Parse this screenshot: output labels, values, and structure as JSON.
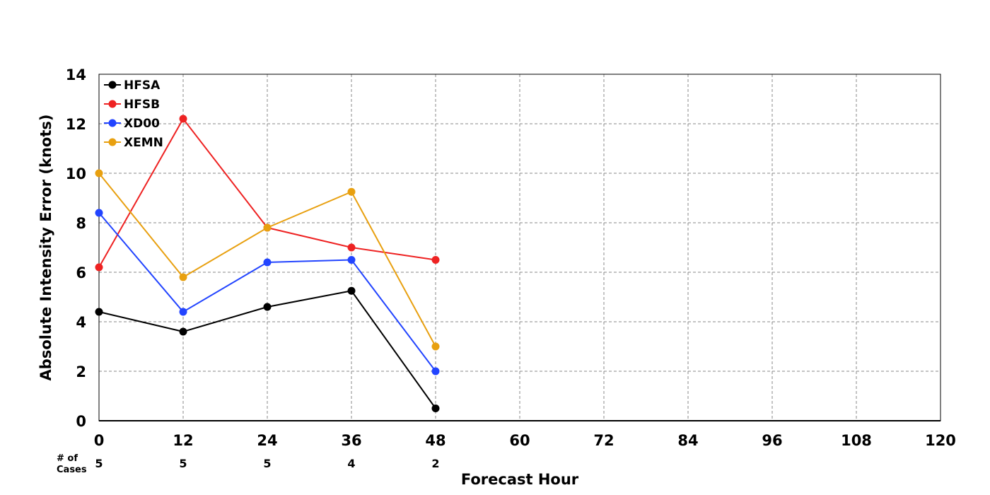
{
  "chart_data": {
    "type": "line",
    "xlabel": "Forecast Hour",
    "ylabel": "Absolute Intensity Error (knots)",
    "xlim": [
      0,
      120
    ],
    "ylim": [
      0,
      14
    ],
    "xticks": [
      0,
      12,
      24,
      36,
      48,
      60,
      72,
      84,
      96,
      108,
      120
    ],
    "yticks": [
      0,
      2,
      4,
      6,
      8,
      10,
      12,
      14
    ],
    "grid": true,
    "legend_position": "top-left",
    "x": [
      0,
      12,
      24,
      36,
      48
    ],
    "series": [
      {
        "name": "HFSA",
        "color": "#000000",
        "values": [
          4.4,
          3.6,
          4.6,
          5.25,
          0.5
        ]
      },
      {
        "name": "HFSB",
        "color": "#ee2222",
        "values": [
          6.2,
          12.2,
          7.8,
          7.0,
          6.5
        ]
      },
      {
        "name": "XD00",
        "color": "#2244ff",
        "values": [
          8.4,
          4.4,
          6.4,
          6.5,
          2.0
        ]
      },
      {
        "name": "XEMN",
        "color": "#e8a010",
        "values": [
          10.0,
          5.8,
          7.8,
          9.25,
          3.0
        ]
      }
    ],
    "cases": {
      "label_line1": "# of",
      "label_line2": "Cases",
      "x": [
        0,
        12,
        24,
        36,
        48
      ],
      "values": [
        "5",
        "5",
        "5",
        "4",
        "2"
      ]
    }
  }
}
